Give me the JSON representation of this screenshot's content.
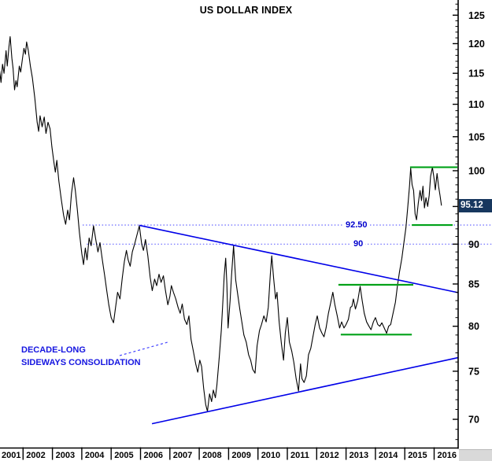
{
  "title": "US DOLLAR INDEX",
  "colors": {
    "price_line": "#000000",
    "trendline_blue": "#0000e8",
    "dotted_level_blue": "#7575ff",
    "label_blue": "#0000cd",
    "support_green": "#00a118",
    "callout_bg_navy": "#17375e",
    "callout_text": "#ffffff",
    "axis_black": "#000000",
    "corner_grey": "#d9d9d9"
  },
  "y_axis": {
    "side": "right",
    "scale": "log",
    "tick_values": [
      70,
      75,
      80,
      85,
      90,
      100,
      105,
      110,
      115,
      120,
      125
    ],
    "minor_tick_step": 1,
    "minor_tick_range": [
      68,
      127
    ],
    "current_price": "95.12"
  },
  "x_axis": {
    "years": [
      "2001",
      "2002",
      "2003",
      "2004",
      "2005",
      "2006",
      "2007",
      "2008",
      "2009",
      "2010",
      "2011",
      "2012",
      "2013",
      "2014",
      "2015",
      "2016"
    ]
  },
  "annotations": {
    "level_labels": [
      {
        "text": "92.50",
        "level": 92.5
      },
      {
        "text": "90",
        "level": 90
      }
    ],
    "note_line1": "DECADE-LONG",
    "note_line2": "SIDEWAYS CONSOLIDATION"
  },
  "chart_data": {
    "type": "line",
    "title": "US DOLLAR INDEX",
    "x_range_years": [
      2001.2,
      2016.85
    ],
    "y_range": [
      68,
      128
    ],
    "grid": false,
    "legend": "none",
    "series": [
      {
        "name": "US Dollar Index",
        "points": [
          [
            2001.2,
            115.5
          ],
          [
            2001.25,
            113.5
          ],
          [
            2001.3,
            116.5
          ],
          [
            2001.35,
            115.0
          ],
          [
            2001.42,
            118.8
          ],
          [
            2001.46,
            116.2
          ],
          [
            2001.52,
            119.5
          ],
          [
            2001.56,
            121.2
          ],
          [
            2001.62,
            117.5
          ],
          [
            2001.66,
            115.8
          ],
          [
            2001.71,
            112.3
          ],
          [
            2001.76,
            113.8
          ],
          [
            2001.8,
            112.8
          ],
          [
            2001.87,
            116.2
          ],
          [
            2001.92,
            115.2
          ],
          [
            2001.98,
            117.5
          ],
          [
            2002.03,
            119.2
          ],
          [
            2002.08,
            118.2
          ],
          [
            2002.12,
            120.3
          ],
          [
            2002.18,
            118.8
          ],
          [
            2002.25,
            116.2
          ],
          [
            2002.32,
            114.2
          ],
          [
            2002.4,
            111.0
          ],
          [
            2002.48,
            107.2
          ],
          [
            2002.53,
            105.8
          ],
          [
            2002.58,
            108.2
          ],
          [
            2002.65,
            106.5
          ],
          [
            2002.72,
            108.0
          ],
          [
            2002.78,
            105.5
          ],
          [
            2002.85,
            107.2
          ],
          [
            2002.92,
            106.2
          ],
          [
            2002.98,
            103.5
          ],
          [
            2003.05,
            101.2
          ],
          [
            2003.1,
            99.8
          ],
          [
            2003.15,
            101.5
          ],
          [
            2003.22,
            98.5
          ],
          [
            2003.3,
            96.0
          ],
          [
            2003.38,
            93.8
          ],
          [
            2003.45,
            92.6
          ],
          [
            2003.52,
            94.5
          ],
          [
            2003.58,
            93.2
          ],
          [
            2003.65,
            96.8
          ],
          [
            2003.72,
            99.0
          ],
          [
            2003.78,
            97.2
          ],
          [
            2003.85,
            94.5
          ],
          [
            2003.92,
            91.5
          ],
          [
            2004.0,
            88.8
          ],
          [
            2004.06,
            87.4
          ],
          [
            2004.12,
            89.5
          ],
          [
            2004.18,
            88.0
          ],
          [
            2004.25,
            90.8
          ],
          [
            2004.32,
            89.8
          ],
          [
            2004.4,
            92.4
          ],
          [
            2004.48,
            90.5
          ],
          [
            2004.55,
            89.0
          ],
          [
            2004.62,
            90.2
          ],
          [
            2004.7,
            88.0
          ],
          [
            2004.78,
            86.0
          ],
          [
            2004.85,
            84.2
          ],
          [
            2004.92,
            82.5
          ],
          [
            2005.0,
            81.0
          ],
          [
            2005.08,
            80.4
          ],
          [
            2005.15,
            82.2
          ],
          [
            2005.22,
            84.0
          ],
          [
            2005.3,
            83.2
          ],
          [
            2005.38,
            85.8
          ],
          [
            2005.45,
            87.8
          ],
          [
            2005.52,
            89.2
          ],
          [
            2005.58,
            88.0
          ],
          [
            2005.65,
            87.2
          ],
          [
            2005.72,
            89.0
          ],
          [
            2005.8,
            90.0
          ],
          [
            2005.88,
            91.2
          ],
          [
            2005.96,
            92.4
          ],
          [
            2006.04,
            90.0
          ],
          [
            2006.1,
            89.2
          ],
          [
            2006.17,
            90.6
          ],
          [
            2006.25,
            88.5
          ],
          [
            2006.33,
            85.8
          ],
          [
            2006.4,
            84.2
          ],
          [
            2006.48,
            85.6
          ],
          [
            2006.55,
            84.8
          ],
          [
            2006.63,
            86.2
          ],
          [
            2006.7,
            85.2
          ],
          [
            2006.78,
            86.0
          ],
          [
            2006.85,
            84.2
          ],
          [
            2006.93,
            82.5
          ],
          [
            2007.0,
            83.5
          ],
          [
            2007.05,
            84.8
          ],
          [
            2007.12,
            84.0
          ],
          [
            2007.2,
            83.2
          ],
          [
            2007.28,
            82.2
          ],
          [
            2007.35,
            81.5
          ],
          [
            2007.42,
            82.6
          ],
          [
            2007.5,
            80.8
          ],
          [
            2007.58,
            80.2
          ],
          [
            2007.65,
            81.2
          ],
          [
            2007.72,
            78.5
          ],
          [
            2007.8,
            77.2
          ],
          [
            2007.88,
            75.8
          ],
          [
            2007.95,
            74.9
          ],
          [
            2008.02,
            76.2
          ],
          [
            2008.08,
            75.5
          ],
          [
            2008.15,
            73.2
          ],
          [
            2008.22,
            71.5
          ],
          [
            2008.28,
            70.8
          ],
          [
            2008.35,
            72.6
          ],
          [
            2008.42,
            71.8
          ],
          [
            2008.48,
            73.0
          ],
          [
            2008.55,
            72.2
          ],
          [
            2008.6,
            73.5
          ],
          [
            2008.68,
            76.5
          ],
          [
            2008.75,
            79.5
          ],
          [
            2008.8,
            82.5
          ],
          [
            2008.85,
            86.0
          ],
          [
            2008.9,
            88.2
          ],
          [
            2008.94,
            85.0
          ],
          [
            2008.98,
            79.8
          ],
          [
            2009.05,
            83.0
          ],
          [
            2009.1,
            86.0
          ],
          [
            2009.17,
            89.8
          ],
          [
            2009.24,
            85.5
          ],
          [
            2009.3,
            84.0
          ],
          [
            2009.38,
            82.0
          ],
          [
            2009.45,
            80.5
          ],
          [
            2009.52,
            79.0
          ],
          [
            2009.6,
            78.2
          ],
          [
            2009.68,
            76.8
          ],
          [
            2009.75,
            76.2
          ],
          [
            2009.82,
            75.2
          ],
          [
            2009.9,
            74.8
          ],
          [
            2009.97,
            77.8
          ],
          [
            2010.05,
            79.5
          ],
          [
            2010.12,
            80.2
          ],
          [
            2010.2,
            81.2
          ],
          [
            2010.28,
            80.5
          ],
          [
            2010.35,
            82.2
          ],
          [
            2010.42,
            86.2
          ],
          [
            2010.47,
            88.5
          ],
          [
            2010.53,
            85.8
          ],
          [
            2010.6,
            83.2
          ],
          [
            2010.65,
            84.0
          ],
          [
            2010.72,
            80.5
          ],
          [
            2010.8,
            78.0
          ],
          [
            2010.87,
            76.2
          ],
          [
            2010.93,
            79.2
          ],
          [
            2011.0,
            81.0
          ],
          [
            2011.07,
            78.2
          ],
          [
            2011.15,
            77.2
          ],
          [
            2011.22,
            76.0
          ],
          [
            2011.3,
            74.2
          ],
          [
            2011.38,
            72.9
          ],
          [
            2011.45,
            75.8
          ],
          [
            2011.5,
            74.2
          ],
          [
            2011.57,
            73.8
          ],
          [
            2011.65,
            74.5
          ],
          [
            2011.72,
            76.8
          ],
          [
            2011.8,
            77.5
          ],
          [
            2011.87,
            78.8
          ],
          [
            2011.95,
            80.2
          ],
          [
            2012.02,
            81.2
          ],
          [
            2012.1,
            79.8
          ],
          [
            2012.18,
            79.2
          ],
          [
            2012.25,
            78.8
          ],
          [
            2012.32,
            79.8
          ],
          [
            2012.4,
            81.5
          ],
          [
            2012.48,
            82.8
          ],
          [
            2012.55,
            84.0
          ],
          [
            2012.62,
            82.5
          ],
          [
            2012.7,
            81.2
          ],
          [
            2012.78,
            79.8
          ],
          [
            2012.85,
            80.5
          ],
          [
            2012.93,
            79.8
          ],
          [
            2013.0,
            80.2
          ],
          [
            2013.08,
            80.8
          ],
          [
            2013.15,
            82.2
          ],
          [
            2013.25,
            83.2
          ],
          [
            2013.32,
            82.0
          ],
          [
            2013.4,
            83.0
          ],
          [
            2013.48,
            84.7
          ],
          [
            2013.55,
            83.0
          ],
          [
            2013.62,
            81.5
          ],
          [
            2013.7,
            80.5
          ],
          [
            2013.78,
            80.0
          ],
          [
            2013.85,
            79.6
          ],
          [
            2013.93,
            80.5
          ],
          [
            2014.0,
            81.0
          ],
          [
            2014.08,
            80.2
          ],
          [
            2014.15,
            80.0
          ],
          [
            2014.22,
            80.4
          ],
          [
            2014.3,
            79.8
          ],
          [
            2014.38,
            79.2
          ],
          [
            2014.45,
            80.0
          ],
          [
            2014.52,
            80.2
          ],
          [
            2014.6,
            81.5
          ],
          [
            2014.68,
            82.8
          ],
          [
            2014.75,
            84.8
          ],
          [
            2014.82,
            86.5
          ],
          [
            2014.9,
            88.2
          ],
          [
            2014.97,
            90.2
          ],
          [
            2015.04,
            92.2
          ],
          [
            2015.1,
            94.8
          ],
          [
            2015.16,
            97.8
          ],
          [
            2015.2,
            100.4
          ],
          [
            2015.25,
            98.0
          ],
          [
            2015.3,
            97.2
          ],
          [
            2015.35,
            94.0
          ],
          [
            2015.4,
            93.2
          ],
          [
            2015.46,
            95.5
          ],
          [
            2015.52,
            97.2
          ],
          [
            2015.57,
            95.8
          ],
          [
            2015.62,
            97.8
          ],
          [
            2015.67,
            94.8
          ],
          [
            2015.72,
            96.2
          ],
          [
            2015.78,
            95.0
          ],
          [
            2015.83,
            96.5
          ],
          [
            2015.88,
            99.2
          ],
          [
            2015.94,
            100.5
          ],
          [
            2016.0,
            98.8
          ],
          [
            2016.04,
            97.3
          ],
          [
            2016.1,
            99.6
          ],
          [
            2016.15,
            97.8
          ],
          [
            2016.2,
            96.5
          ],
          [
            2016.25,
            95.12
          ]
        ]
      }
    ],
    "trendlines": [
      {
        "name": "descending-resistance",
        "from": [
          2005.96,
          92.46
        ],
        "to": [
          2016.82,
          83.95
        ]
      },
      {
        "name": "ascending-support",
        "from": [
          2006.39,
          69.56
        ],
        "to": [
          2016.82,
          76.48
        ]
      }
    ],
    "dotted_levels": [
      {
        "label": "92.50",
        "level": 92.5,
        "from_year": 2004.03
      },
      {
        "label": "90",
        "level": 90.0,
        "from_year": 2004.17
      }
    ],
    "green_levels": [
      {
        "level": 100.5,
        "from_year": 2015.18,
        "to_year": 2016.79
      },
      {
        "level": 92.5,
        "from_year": 2015.24,
        "to_year": 2016.63
      },
      {
        "level": 84.9,
        "from_year": 2012.74,
        "to_year": 2015.29
      },
      {
        "level": 79.05,
        "from_year": 2012.82,
        "to_year": 2015.24
      }
    ],
    "last_price": 95.12
  }
}
